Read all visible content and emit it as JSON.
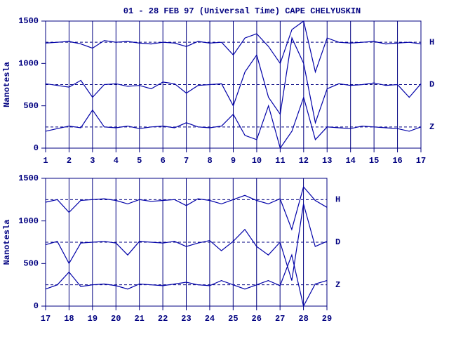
{
  "chart_data": [
    {
      "type": "line",
      "title": "01 - 28 FEB 97 (Universal Time) CAPE CHELYUSKIN",
      "y_label": "Nanotesla",
      "x": [
        1,
        1.5,
        2,
        2.5,
        3,
        3.5,
        4,
        4.5,
        5,
        5.5,
        6,
        6.5,
        7,
        7.5,
        8,
        8.5,
        9,
        9.5,
        10,
        10.5,
        11,
        11.5,
        12,
        12.5,
        13,
        13.5,
        14,
        14.5,
        15,
        15.5,
        16,
        16.5,
        17
      ],
      "xlim": [
        1,
        17
      ],
      "xticks": [
        1,
        2,
        3,
        4,
        5,
        6,
        7,
        8,
        9,
        10,
        11,
        12,
        13,
        14,
        15,
        16,
        17
      ],
      "ylim": [
        0,
        1500
      ],
      "yticks": [
        0,
        500,
        1000,
        1500
      ],
      "grid": "x",
      "series": [
        {
          "name": "H",
          "color": "#0000a8",
          "baseline": 1250,
          "values": [
            1240,
            1250,
            1260,
            1230,
            1180,
            1270,
            1250,
            1260,
            1240,
            1230,
            1250,
            1240,
            1200,
            1260,
            1240,
            1250,
            1100,
            1300,
            1350,
            1200,
            1000,
            1400,
            1500,
            900,
            1300,
            1250,
            1240,
            1250,
            1260,
            1230,
            1240,
            1250,
            1230
          ]
        },
        {
          "name": "D",
          "color": "#0000a8",
          "baseline": 750,
          "values": [
            760,
            740,
            720,
            800,
            600,
            750,
            760,
            730,
            740,
            700,
            780,
            760,
            650,
            740,
            750,
            760,
            500,
            900,
            1100,
            600,
            400,
            1300,
            1000,
            300,
            700,
            760,
            740,
            750,
            770,
            740,
            750,
            600,
            760
          ]
        },
        {
          "name": "Z",
          "color": "#0000a8",
          "baseline": 250,
          "values": [
            200,
            230,
            260,
            240,
            450,
            250,
            240,
            260,
            230,
            250,
            260,
            240,
            300,
            250,
            240,
            260,
            400,
            150,
            100,
            500,
            0,
            200,
            600,
            100,
            250,
            240,
            230,
            260,
            250,
            240,
            230,
            200,
            250
          ]
        }
      ]
    },
    {
      "type": "line",
      "y_label": "Nanotesla",
      "x": [
        17,
        17.5,
        18,
        18.5,
        19,
        19.5,
        20,
        20.5,
        21,
        21.5,
        22,
        22.5,
        23,
        23.5,
        24,
        24.5,
        25,
        25.5,
        26,
        26.5,
        27,
        27.5,
        28,
        28.5,
        29
      ],
      "xlim": [
        17,
        29
      ],
      "xticks": [
        17,
        18,
        19,
        20,
        21,
        22,
        23,
        24,
        25,
        26,
        27,
        28,
        29
      ],
      "ylim": [
        0,
        1500
      ],
      "yticks": [
        0,
        500,
        1000,
        1500
      ],
      "grid": "x",
      "series": [
        {
          "name": "H",
          "color": "#0000a8",
          "baseline": 1250,
          "values": [
            1220,
            1250,
            1100,
            1240,
            1250,
            1260,
            1240,
            1200,
            1250,
            1230,
            1240,
            1250,
            1180,
            1260,
            1240,
            1200,
            1250,
            1300,
            1240,
            1200,
            1260,
            900,
            1400,
            1240,
            1160
          ]
        },
        {
          "name": "D",
          "color": "#0000a8",
          "baseline": 750,
          "values": [
            720,
            760,
            500,
            740,
            750,
            760,
            740,
            600,
            760,
            750,
            740,
            760,
            700,
            740,
            770,
            650,
            760,
            900,
            700,
            600,
            750,
            300,
            1200,
            700,
            760
          ]
        },
        {
          "name": "Z",
          "color": "#0000a8",
          "baseline": 250,
          "values": [
            200,
            250,
            400,
            230,
            250,
            260,
            240,
            200,
            260,
            250,
            240,
            260,
            280,
            250,
            240,
            300,
            250,
            200,
            250,
            300,
            240,
            600,
            0,
            260,
            300
          ]
        }
      ]
    }
  ]
}
